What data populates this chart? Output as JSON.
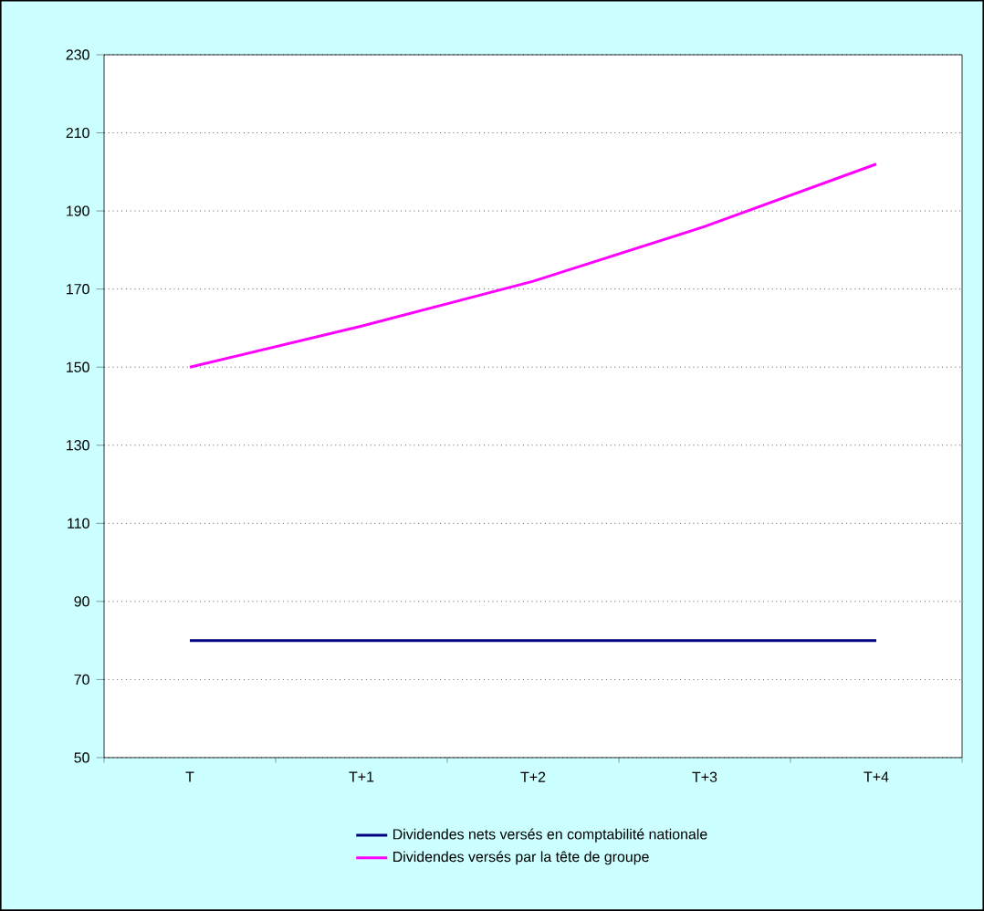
{
  "chart_data": {
    "type": "line",
    "categories": [
      "T",
      "T+1",
      "T+2",
      "T+3",
      "T+4"
    ],
    "series": [
      {
        "name": "Dividendes nets versés en comptabilité nationale",
        "color": "#000080",
        "values": [
          80,
          80,
          80,
          80,
          80
        ]
      },
      {
        "name": "Dividendes versés par la tête de groupe",
        "color": "#ff00ff",
        "values": [
          150,
          160.5,
          172,
          186,
          202
        ]
      }
    ],
    "ylim": [
      50,
      230
    ],
    "yticks": [
      50,
      70,
      90,
      110,
      130,
      150,
      170,
      190,
      210,
      230
    ],
    "grid": "y",
    "legend": "bottom",
    "marker": "none",
    "line_style": "solid"
  }
}
